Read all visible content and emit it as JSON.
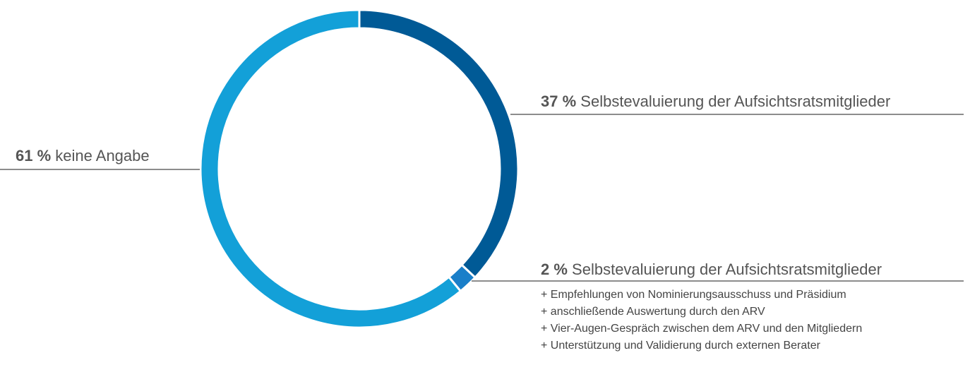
{
  "chart_data": {
    "type": "pie",
    "donut": true,
    "categories": [
      "Selbstevaluierung der Aufsichtsratsmitglieder",
      "Selbstevaluierung der Aufsichtsratsmitglieder",
      "keine Angabe"
    ],
    "values": [
      37,
      2,
      61
    ],
    "value_labels": [
      "37 %",
      "2 %",
      "61 %"
    ],
    "colors": [
      "#005a96",
      "#1a7fc9",
      "#13a0d8"
    ],
    "annotations": [
      "+ Empfehlungen von Nominierungsausschuss und Präsidium",
      "+ anschließende Auswertung durch den ARV",
      "+ Vier-Augen-Gespräch zwischen dem ARV und den Mitgliedern",
      "+ Unterstützung und Validierung durch externen Berater"
    ]
  }
}
